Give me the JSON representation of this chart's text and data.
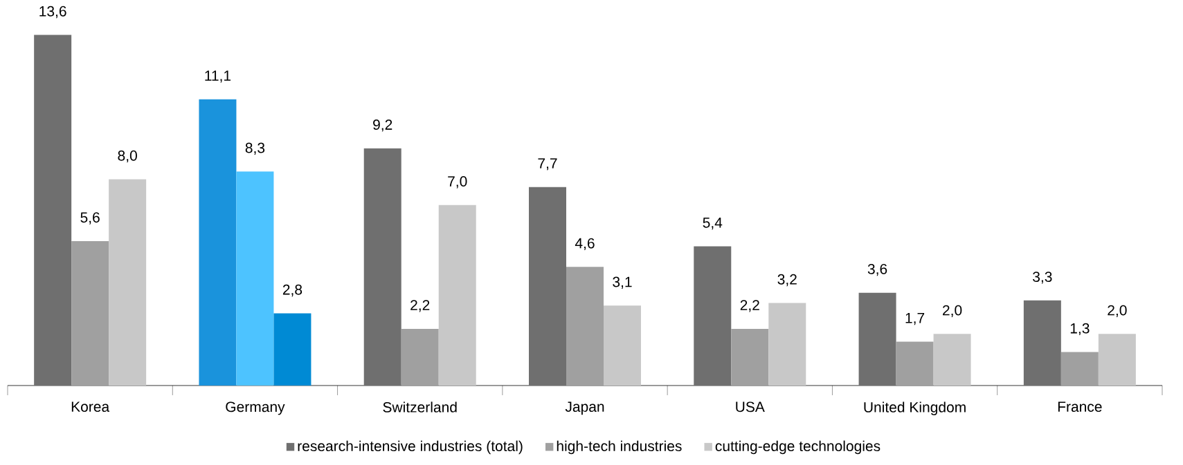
{
  "chart_data": {
    "type": "bar",
    "categories": [
      "Korea",
      "Germany",
      "Switzerland",
      "Japan",
      "USA",
      "United Kingdom",
      "France"
    ],
    "series": [
      {
        "name": "research-intensive industries (total)",
        "color": "#6f6f6f",
        "colors": [
          "#6f6f6f",
          "#1a93dc",
          "#6f6f6f",
          "#6f6f6f",
          "#6f6f6f",
          "#6f6f6f",
          "#6f6f6f"
        ],
        "values": [
          13.6,
          11.1,
          9.2,
          7.7,
          5.4,
          3.6,
          3.3
        ],
        "value_labels": [
          "13,6",
          "11,1",
          "9,2",
          "7,7",
          "5,4",
          "3,6",
          "3,3"
        ]
      },
      {
        "name": "high-tech industries",
        "color": "#a0a0a0",
        "colors": [
          "#a0a0a0",
          "#4dc3ff",
          "#a0a0a0",
          "#a0a0a0",
          "#a0a0a0",
          "#a0a0a0",
          "#a0a0a0"
        ],
        "values": [
          5.6,
          8.3,
          2.2,
          4.6,
          2.2,
          1.7,
          1.3
        ],
        "value_labels": [
          "5,6",
          "8,3",
          "2,2",
          "4,6",
          "2,2",
          "1,7",
          "1,3"
        ]
      },
      {
        "name": "cutting-edge technologies",
        "color": "#c8c8c8",
        "colors": [
          "#c8c8c8",
          "#008ad4",
          "#c8c8c8",
          "#c8c8c8",
          "#c8c8c8",
          "#c8c8c8",
          "#c8c8c8"
        ],
        "values": [
          8.0,
          2.8,
          7.0,
          3.1,
          3.2,
          2.0,
          2.0
        ],
        "value_labels": [
          "8,0",
          "2,8",
          "7,0",
          "3,1",
          "3,2",
          "2,0",
          "2,0"
        ]
      }
    ],
    "legend": "bottom",
    "grid": false
  }
}
